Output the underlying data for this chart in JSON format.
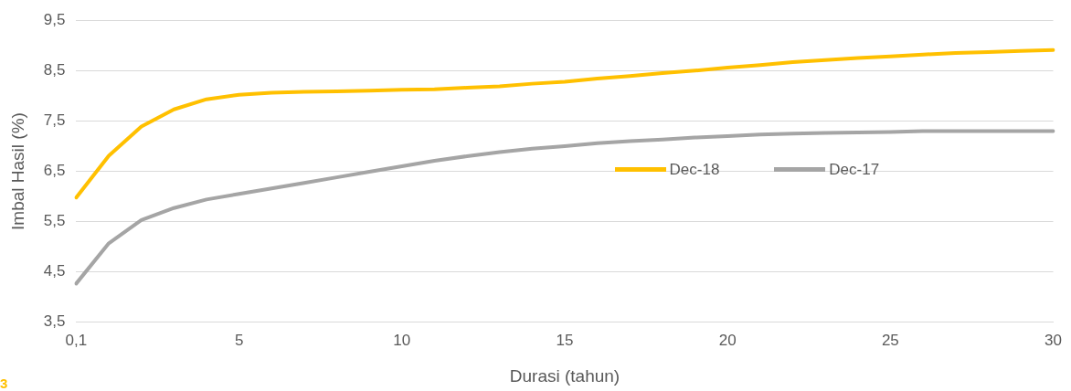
{
  "chart_data": {
    "type": "line",
    "xlabel": "Durasi (tahun)",
    "ylabel": "Imbal Hasil (%)",
    "categories": [
      "0,1",
      null,
      null,
      null,
      null,
      "5",
      null,
      null,
      null,
      null,
      "10",
      null,
      null,
      null,
      null,
      "15",
      null,
      null,
      null,
      null,
      "20",
      null,
      null,
      null,
      null,
      "25",
      null,
      null,
      null,
      null,
      "30"
    ],
    "series": [
      {
        "name": "Dec-18",
        "color": "#ffc000",
        "values": [
          5.98,
          6.81,
          7.39,
          7.73,
          7.93,
          8.02,
          8.06,
          8.08,
          8.09,
          8.1,
          8.12,
          8.13,
          8.16,
          8.19,
          8.24,
          8.28,
          8.34,
          8.39,
          8.45,
          8.5,
          8.56,
          8.61,
          8.67,
          8.71,
          8.75,
          8.78,
          8.82,
          8.85,
          8.87,
          8.89,
          8.91
        ]
      },
      {
        "name": "Dec-17",
        "color": "#a5a5a5",
        "values": [
          4.27,
          5.07,
          5.53,
          5.77,
          5.94,
          6.05,
          6.16,
          6.27,
          6.38,
          6.49,
          6.6,
          6.71,
          6.8,
          6.88,
          6.95,
          7.0,
          7.06,
          7.1,
          7.13,
          7.17,
          7.2,
          7.23,
          7.25,
          7.26,
          7.27,
          7.28,
          7.3,
          7.3,
          7.3,
          7.3,
          7.3
        ]
      }
    ],
    "ylim": [
      3.5,
      9.5
    ],
    "yticks": [
      {
        "value": 3.5,
        "label": "3,5"
      },
      {
        "value": 4.5,
        "label": "4,5"
      },
      {
        "value": 5.5,
        "label": "5,5"
      },
      {
        "value": 6.5,
        "label": "6,5"
      },
      {
        "value": 7.5,
        "label": "7,5"
      },
      {
        "value": 8.5,
        "label": "8,5"
      },
      {
        "value": 9.5,
        "label": "9,5"
      }
    ],
    "grid": "y",
    "legend": "right",
    "marker": "none",
    "line_style": "solid",
    "annotations": [
      "3"
    ]
  }
}
